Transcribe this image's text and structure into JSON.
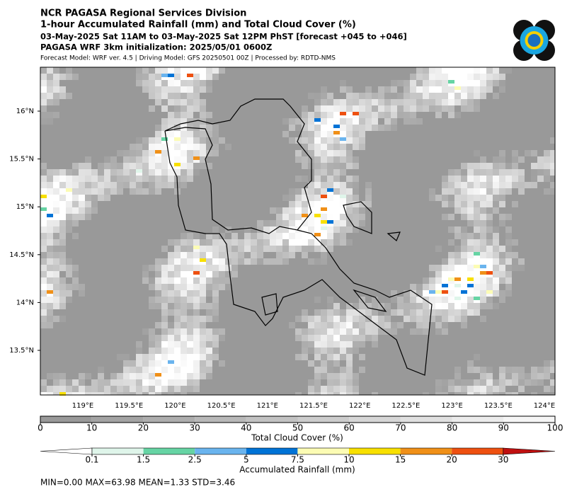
{
  "header": {
    "title": "NCR PAGASA Regional Services Division",
    "subtitle": "1-hour Accumulated Rainfall (mm) and Total Cloud Cover (%)",
    "period": "03-May-2025 Sat 11AM to 03-May-2025 Sat 12PM PhST [forecast +045 to +046]",
    "init": "PAGASA WRF 3km initialization: 2025/05/01 0600Z",
    "model": "Forecast Model: WRF ver. 4.5 | Driving Model: GFS 20250501 00Z | Processed by: RDTD-NMS"
  },
  "map": {
    "lat_labels": [
      "16°N",
      "15.5°N",
      "15°N",
      "14.5°N",
      "14°N",
      "13.5°N"
    ],
    "lon_labels": [
      "119°E",
      "119.5°E",
      "120°E",
      "120.5°E",
      "121°E",
      "121.5°E",
      "122°E",
      "122.5°E",
      "123°E",
      "123.5°E",
      "124°E"
    ]
  },
  "cloud_colorbar": {
    "ticks": [
      0,
      10,
      20,
      30,
      40,
      50,
      60,
      70,
      80,
      90,
      100
    ],
    "colors": [
      "#999999",
      "#a3a3a3",
      "#adadad",
      "#b8b8b8",
      "#c2c2c2",
      "#cccccc",
      "#d6d6d6",
      "#e0e0e0",
      "#ebebeb",
      "#f5f5f5"
    ],
    "label": "Total Cloud Cover (%)"
  },
  "rain_colorbar": {
    "ticks": [
      0.1,
      1.5,
      2.5,
      5,
      7.5,
      10,
      15,
      20,
      30
    ],
    "colors": [
      "#ffffff",
      "#dff5ea",
      "#66d4a4",
      "#6ab4ee",
      "#0073d6",
      "#fcfcb4",
      "#f8e000",
      "#f09018",
      "#ee5010",
      "#c01010"
    ],
    "label": "Accumulated Rainfall (mm)"
  },
  "stats": "MIN=0.00   MAX=63.98   MEAN=1.33   STD=3.46"
}
